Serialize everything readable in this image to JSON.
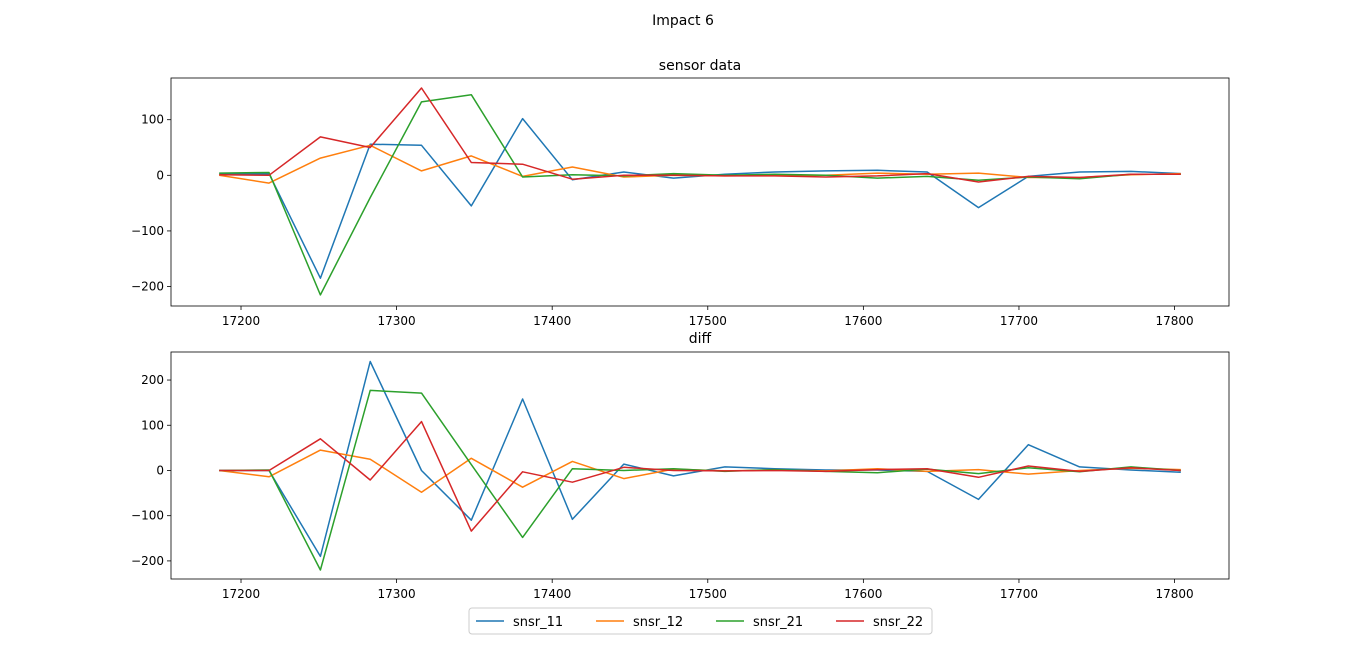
{
  "figure_title": "Impact 6",
  "colors": {
    "snsr_11": "#1f77b4",
    "snsr_12": "#ff7f0e",
    "snsr_21": "#2ca02c",
    "snsr_22": "#d62728"
  },
  "legend": {
    "placement": "bottom-center",
    "entries": [
      "snsr_11",
      "snsr_12",
      "snsr_21",
      "snsr_22"
    ]
  },
  "chart_data": [
    {
      "type": "line",
      "title": "sensor data",
      "xlabel": "",
      "ylabel": "",
      "xlim": [
        17155,
        17835
      ],
      "ylim": [
        -235,
        175
      ],
      "xticks": [
        17200,
        17300,
        17400,
        17500,
        17600,
        17700,
        17800
      ],
      "yticks": [
        -200,
        -100,
        0,
        100
      ],
      "grid": false,
      "x": [
        17186,
        17218,
        17251,
        17283,
        17316,
        17348,
        17381,
        17413,
        17446,
        17478,
        17511,
        17543,
        17576,
        17609,
        17641,
        17674,
        17706,
        17739,
        17772,
        17804
      ],
      "series": [
        {
          "name": "snsr_11",
          "values": [
            2,
            3,
            -185,
            56,
            54,
            -55,
            102,
            -8,
            6,
            -5,
            2,
            6,
            8,
            9,
            6,
            -58,
            -2,
            6,
            7,
            3
          ]
        },
        {
          "name": "snsr_12",
          "values": [
            0,
            -14,
            31,
            54,
            8,
            35,
            -2,
            15,
            -3,
            0,
            -1,
            0,
            0,
            4,
            2,
            4,
            -4,
            -4,
            1,
            3
          ]
        },
        {
          "name": "snsr_21",
          "values": [
            4,
            5,
            -215,
            -40,
            132,
            145,
            -3,
            1,
            -1,
            3,
            0,
            2,
            0,
            -5,
            -2,
            -9,
            -3,
            -6,
            2,
            2
          ]
        },
        {
          "name": "snsr_22",
          "values": [
            1,
            0,
            69,
            50,
            157,
            23,
            20,
            -7,
            0,
            0,
            -1,
            -1,
            -3,
            -1,
            3,
            -12,
            -2,
            -4,
            2,
            2
          ]
        }
      ]
    },
    {
      "type": "line",
      "title": "diff",
      "xlabel": "",
      "ylabel": "",
      "xlim": [
        17155,
        17835
      ],
      "ylim": [
        -240,
        262
      ],
      "xticks": [
        17200,
        17300,
        17400,
        17500,
        17600,
        17700,
        17800
      ],
      "yticks": [
        -200,
        -100,
        0,
        100,
        200
      ],
      "grid": false,
      "x": [
        17186,
        17218,
        17251,
        17283,
        17316,
        17348,
        17381,
        17413,
        17446,
        17478,
        17511,
        17543,
        17576,
        17609,
        17641,
        17674,
        17706,
        17739,
        17772,
        17804
      ],
      "series": [
        {
          "name": "snsr_11",
          "values": [
            0,
            0,
            -190,
            241,
            0,
            -110,
            158,
            -108,
            14,
            -12,
            8,
            4,
            1,
            1,
            -2,
            -64,
            57,
            8,
            1,
            -4
          ]
        },
        {
          "name": "snsr_12",
          "values": [
            0,
            -14,
            45,
            25,
            -48,
            27,
            -37,
            20,
            -18,
            3,
            -1,
            1,
            -1,
            4,
            -2,
            2,
            -8,
            0,
            5,
            2
          ]
        },
        {
          "name": "snsr_21",
          "values": [
            0,
            1,
            -220,
            177,
            171,
            13,
            -148,
            4,
            0,
            4,
            -2,
            2,
            -2,
            -5,
            3,
            -7,
            6,
            -3,
            8,
            0
          ]
        },
        {
          "name": "snsr_22",
          "values": [
            0,
            0,
            70,
            -21,
            108,
            -134,
            -3,
            -26,
            7,
            0,
            -1,
            0,
            -2,
            2,
            4,
            -15,
            10,
            -2,
            6,
            0
          ]
        }
      ]
    }
  ]
}
